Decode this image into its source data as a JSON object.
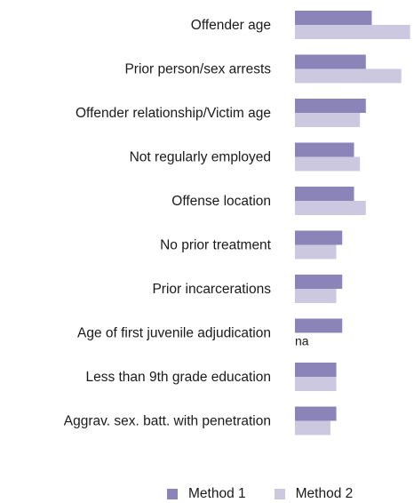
{
  "chart_data": {
    "type": "bar",
    "orientation": "horizontal",
    "categories": [
      "Offender age",
      "Prior person/sex arrests",
      "Offender relationship/Victim age",
      "Not regularly employed",
      "Offense location",
      "No prior treatment",
      "Prior incarcerations",
      "Age of first juvenile adjudication",
      "Less than 9th grade education",
      "Aggrav. sex. batt. with penetration"
    ],
    "series": [
      {
        "name": "Method 1",
        "color": "#8a84b8",
        "values": [
          13,
          12,
          12,
          10,
          10,
          8,
          8,
          8,
          7,
          7
        ]
      },
      {
        "name": "Method 2",
        "color": "#cbc8e0",
        "values": [
          19.5,
          18,
          11,
          11,
          12,
          7,
          7,
          null,
          7,
          6
        ]
      }
    ],
    "value_annotations": [
      {
        "category": "Age of first juvenile adjudication",
        "series": "Method 2",
        "text": "na"
      }
    ],
    "xlim": [
      0,
      20
    ],
    "grid": false,
    "legend": "bottom"
  }
}
